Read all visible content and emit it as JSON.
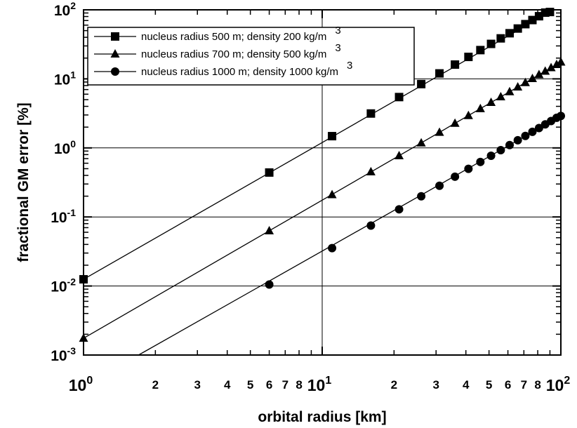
{
  "chart_data": {
    "type": "line",
    "xlabel": "orbital radius [km]",
    "ylabel": "fractional GM error [%]",
    "x_scale": "log",
    "y_scale": "log",
    "xlim": [
      1,
      100
    ],
    "ylim": [
      0.001,
      100
    ],
    "grid": "decades",
    "legend_position": "top-left",
    "x_major_ticks": [
      {
        "value": 1,
        "base": "10",
        "exp": "0"
      },
      {
        "value": 10,
        "base": "10",
        "exp": "1"
      },
      {
        "value": 100,
        "base": "10",
        "exp": "2"
      }
    ],
    "y_major_ticks": [
      {
        "value": 0.001,
        "base": "10",
        "exp": "-3"
      },
      {
        "value": 0.01,
        "base": "10",
        "exp": "-2"
      },
      {
        "value": 0.1,
        "base": "10",
        "exp": "-1"
      },
      {
        "value": 1,
        "base": "10",
        "exp": "0"
      },
      {
        "value": 10,
        "base": "10",
        "exp": "1"
      },
      {
        "value": 100,
        "base": "10",
        "exp": "2"
      }
    ],
    "x_minor_ticks": [
      {
        "value": 2,
        "label": "2"
      },
      {
        "value": 3,
        "label": "3"
      },
      {
        "value": 4,
        "label": "4"
      },
      {
        "value": 5,
        "label": "5"
      },
      {
        "value": 6,
        "label": "6"
      },
      {
        "value": 7,
        "label": "7"
      },
      {
        "value": 8,
        "label": "8"
      },
      {
        "value": 20,
        "label": "2"
      },
      {
        "value": 30,
        "label": "3"
      },
      {
        "value": 40,
        "label": "4"
      },
      {
        "value": 50,
        "label": "5"
      },
      {
        "value": 60,
        "label": "6"
      },
      {
        "value": 70,
        "label": "7"
      },
      {
        "value": 80,
        "label": "8"
      }
    ],
    "series": [
      {
        "name": "nucleus radius 500 m; density 200 kg/m",
        "superscript": "3",
        "marker": "square",
        "line_x": [
          1,
          90
        ],
        "line_y": [
          0.0125,
          93
        ],
        "points_x": [
          1,
          6,
          11,
          16,
          21,
          26,
          31,
          36,
          41,
          46,
          51,
          56,
          61,
          66,
          71,
          76,
          81,
          86,
          90
        ],
        "points_y": [
          0.0125,
          0.44,
          1.48,
          3.15,
          5.45,
          8.4,
          12.0,
          16.1,
          20.8,
          26.1,
          32.1,
          38.6,
          45.8,
          53.6,
          62.0,
          71.1,
          80.8,
          91.1,
          93
        ]
      },
      {
        "name": "nucleus radius 700 m; density 500 kg/m",
        "superscript": "3",
        "marker": "triangle",
        "line_x": [
          1,
          100
        ],
        "line_y": [
          0.00175,
          17.5
        ],
        "points_x": [
          1,
          6,
          11,
          16,
          21,
          26,
          31,
          36,
          41,
          46,
          51,
          56,
          61,
          66,
          71,
          76,
          81,
          86,
          91,
          96,
          100
        ],
        "points_y": [
          0.00175,
          0.063,
          0.21,
          0.45,
          0.77,
          1.18,
          1.68,
          2.27,
          2.94,
          3.7,
          4.55,
          5.49,
          6.51,
          7.62,
          8.82,
          10.1,
          11.5,
          12.9,
          14.5,
          16.1,
          17.5
        ]
      },
      {
        "name": "nucleus radius 1000 m; density 1000 kg/m",
        "superscript": "3",
        "marker": "circle",
        "line_x": [
          1.7,
          100
        ],
        "line_y": [
          0.001,
          2.9
        ],
        "points_x": [
          6,
          11,
          16,
          21,
          26,
          31,
          36,
          41,
          46,
          51,
          56,
          61,
          66,
          71,
          76,
          81,
          86,
          91,
          96,
          100
        ],
        "points_y": [
          0.0105,
          0.0354,
          0.0749,
          0.129,
          0.199,
          0.283,
          0.383,
          0.497,
          0.626,
          0.77,
          0.929,
          1.1,
          1.29,
          1.49,
          1.71,
          1.94,
          2.19,
          2.45,
          2.73,
          2.9
        ]
      }
    ]
  }
}
